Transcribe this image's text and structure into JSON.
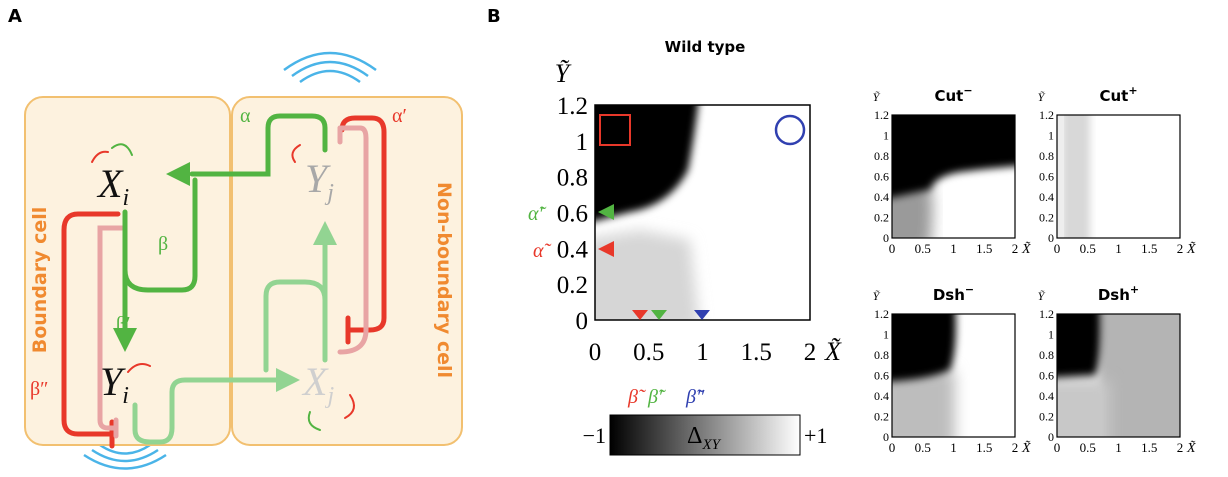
{
  "panel_a": {
    "label": "A",
    "cells": {
      "boundary": "Boundary cell",
      "non_boundary": "Non-boundary cell"
    },
    "nodes": {
      "x_i": {
        "base": "X",
        "sub": "i"
      },
      "y_i": {
        "base": "Y",
        "sub": "i"
      },
      "x_j": {
        "base": "X",
        "sub": "j"
      },
      "y_j": {
        "base": "Y",
        "sub": "j"
      }
    },
    "edges": {
      "alpha": "α",
      "alpha_prime": "α′",
      "beta": "β",
      "beta_prime": "β′",
      "beta_double_prime": "β″"
    }
  },
  "panel_b": {
    "label": "B",
    "title": "Wild type",
    "main": {
      "y_label": "Ỹ",
      "x_label": "X̃",
      "yticks": [
        "0",
        "0.2",
        "0.4",
        "0.6",
        "0.8",
        "1",
        "1.2"
      ],
      "xticks": [
        "0",
        "0.5",
        "1",
        "1.5",
        "2"
      ],
      "left_markers": [
        "α̃′",
        "α̃"
      ],
      "bottom_markers": [
        "β̃",
        "β̃′",
        "β̃″"
      ],
      "colorbar": {
        "min": "−1",
        "max": "+1",
        "symbol": "Δ",
        "sub": "XY"
      }
    },
    "insets": [
      {
        "title": "Cut",
        "sup": "−",
        "y_label": "Ỹ",
        "x_label": "X̃",
        "yticks": [
          "0",
          "0.2",
          "0.4",
          "0.6",
          "0.8",
          "1",
          "1.2"
        ],
        "xticks": [
          "0",
          "0.5",
          "1",
          "1.5",
          "2"
        ]
      },
      {
        "title": "Cut",
        "sup": "+",
        "y_label": "Ỹ",
        "x_label": "X̃",
        "yticks": [
          "0",
          "0.2",
          "0.4",
          "0.6",
          "0.8",
          "1",
          "1.2"
        ],
        "xticks": [
          "0",
          "0.5",
          "1",
          "1.5",
          "2"
        ]
      },
      {
        "title": "Dsh",
        "sup": "−",
        "y_label": "Ỹ",
        "x_label": "X̃",
        "yticks": [
          "0",
          "0.2",
          "0.4",
          "0.6",
          "0.8",
          "1",
          "1.2"
        ],
        "xticks": [
          "0",
          "0.5",
          "1",
          "1.5",
          "2"
        ]
      },
      {
        "title": "Dsh",
        "sup": "+",
        "y_label": "Ỹ",
        "x_label": "X̃",
        "yticks": [
          "0",
          "0.2",
          "0.4",
          "0.6",
          "0.8",
          "1",
          "1.2"
        ],
        "xticks": [
          "0",
          "0.5",
          "1",
          "1.5",
          "2"
        ]
      }
    ]
  }
}
